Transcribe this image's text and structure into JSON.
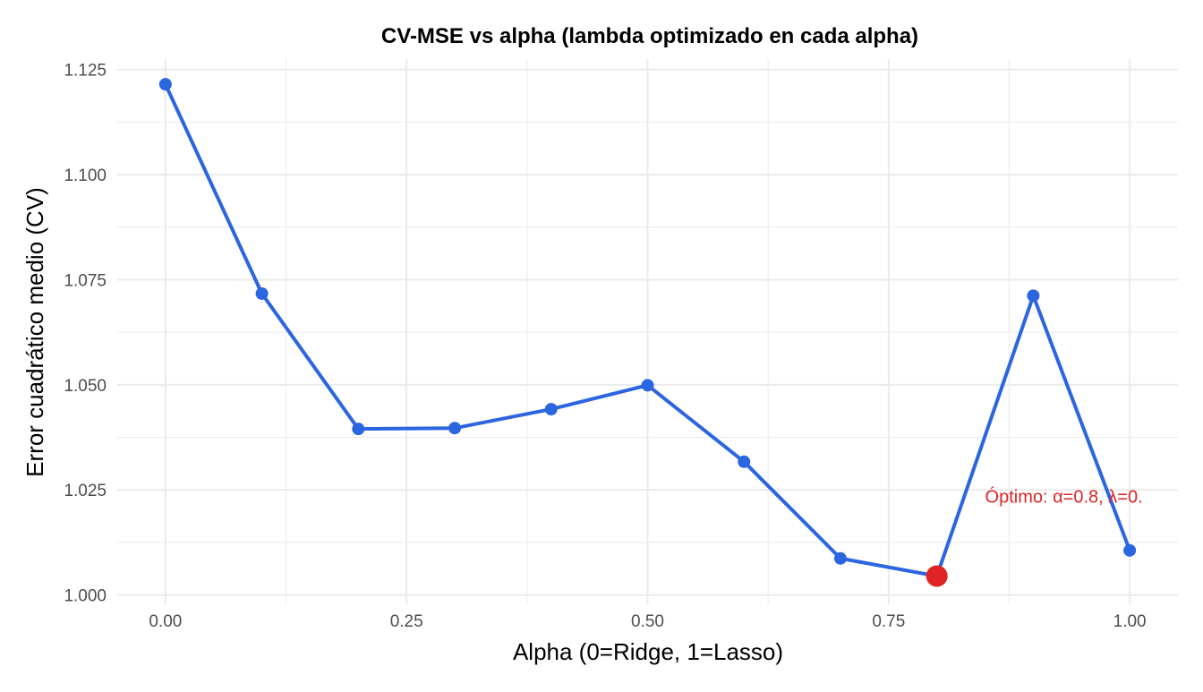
{
  "chart_data": {
    "type": "line",
    "title": "CV-MSE vs alpha (lambda optimizado en cada alpha)",
    "xlabel": "Alpha (0=Ridge, 1=Lasso)",
    "ylabel": "Error cuadrático medio (CV)",
    "x": [
      0.0,
      0.1,
      0.2,
      0.3,
      0.4,
      0.5,
      0.6,
      0.7,
      0.8,
      0.9,
      1.0
    ],
    "series": [
      {
        "values": [
          1.1215,
          1.0717,
          1.0395,
          1.0397,
          1.0442,
          1.0499,
          1.0317,
          1.0087,
          1.0045,
          1.0712,
          1.0106
        ]
      }
    ],
    "xlim": [
      -0.05,
      1.05
    ],
    "ylim": [
      0.998,
      1.1275
    ],
    "x_ticks": [
      0.0,
      0.25,
      0.5,
      0.75,
      1.0
    ],
    "x_tick_labels": [
      "0.00",
      "0.25",
      "0.50",
      "0.75",
      "1.00"
    ],
    "y_ticks": [
      1.0,
      1.025,
      1.05,
      1.075,
      1.1,
      1.125
    ],
    "y_tick_labels": [
      "1.000",
      "1.025",
      "1.050",
      "1.075",
      "1.100",
      "1.125"
    ],
    "grid": true,
    "legend": "none",
    "highlight": {
      "x": 0.8,
      "y": 1.0045
    },
    "annotation": {
      "text": "Óptimo: α=0.8, λ=0.",
      "x": 0.85,
      "y": 1.0235
    },
    "colors": {
      "line": "#2b65e0",
      "highlight": "#e02424",
      "annotation": "#e02424",
      "grid": "#ebebeb"
    }
  }
}
